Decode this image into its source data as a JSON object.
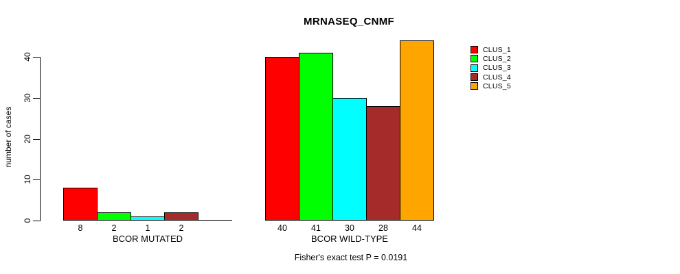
{
  "chart_data": {
    "type": "bar",
    "title": "MRNASEQ_CNMF",
    "ylabel": "number of cases",
    "annotation": "Fisher's exact test P = 0.0191",
    "yticks": [
      0,
      10,
      20,
      30,
      40
    ],
    "ylim": [
      0,
      44
    ],
    "grid": false,
    "legend_position": "right-outside",
    "categories": [
      "BCOR MUTATED",
      "BCOR WILD-TYPE"
    ],
    "series": [
      {
        "name": "CLUS_1",
        "color": "#ff0000",
        "values": [
          8,
          40
        ]
      },
      {
        "name": "CLUS_2",
        "color": "#00ff00",
        "values": [
          2,
          41
        ]
      },
      {
        "name": "CLUS_3",
        "color": "#00ffff",
        "values": [
          1,
          30
        ]
      },
      {
        "name": "CLUS_4",
        "color": "#a52a2a",
        "values": [
          2,
          28
        ]
      },
      {
        "name": "CLUS_5",
        "color": "#ffa500",
        "values": [
          0,
          44
        ]
      }
    ],
    "bar_value_labels": {
      "BCOR MUTATED": [
        "8",
        "2",
        "1",
        "2",
        ""
      ],
      "BCOR WILD-TYPE": [
        "40",
        "41",
        "30",
        "28",
        "44"
      ]
    }
  }
}
